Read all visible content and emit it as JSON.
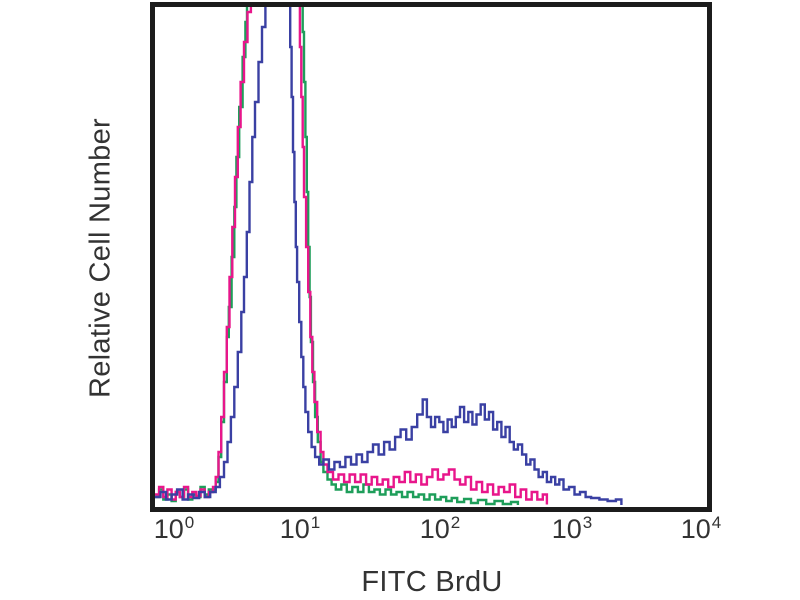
{
  "page": {
    "background": "#ffffff"
  },
  "colors": {
    "frame": "#1c1c1c",
    "text": "#333333",
    "green_trace": "#1e9e5a",
    "magenta_trace": "#e8168b",
    "blue_trace": "#3a40a3"
  },
  "chart_data": {
    "type": "line",
    "subtype": "flow_cytometry_histogram_overlay",
    "title": "",
    "xlabel": "FITC BrdU",
    "ylabel": "Relative Cell Number",
    "x_scale": "log10",
    "x_range": [
      1,
      10000
    ],
    "x_range_log10": [
      0,
      4
    ],
    "y_unit": "relative cell number (percent of plot height, main peak clipped at top)",
    "y_range_pct": [
      0,
      100
    ],
    "grid": false,
    "legend": null,
    "y_ticks": [],
    "x_ticks": [
      {
        "base": "10",
        "exp": "0"
      },
      {
        "base": "10",
        "exp": "1"
      },
      {
        "base": "10",
        "exp": "2"
      },
      {
        "base": "10",
        "exp": "3"
      },
      {
        "base": "10",
        "exp": "4"
      }
    ],
    "series": [
      {
        "name": "green-trace",
        "color": "#1e9e5a",
        "points": [
          [
            0.0,
            2
          ],
          [
            0.03,
            3.5
          ],
          [
            0.06,
            1.5
          ],
          [
            0.09,
            2.5
          ],
          [
            0.12,
            1.2
          ],
          [
            0.15,
            3
          ],
          [
            0.18,
            2
          ],
          [
            0.21,
            3.5
          ],
          [
            0.24,
            1.5
          ],
          [
            0.27,
            2.5
          ],
          [
            0.3,
            2
          ],
          [
            0.33,
            4
          ],
          [
            0.36,
            2.5
          ],
          [
            0.39,
            3.5
          ],
          [
            0.42,
            3.5
          ],
          [
            0.44,
            5
          ],
          [
            0.46,
            10
          ],
          [
            0.48,
            17
          ],
          [
            0.5,
            25
          ],
          [
            0.52,
            34
          ],
          [
            0.535,
            40
          ],
          [
            0.555,
            50
          ],
          [
            0.575,
            60
          ],
          [
            0.59,
            70
          ],
          [
            0.61,
            80
          ],
          [
            0.635,
            90
          ],
          [
            0.655,
            97
          ],
          [
            0.667,
            103
          ],
          [
            1.06,
            103
          ],
          [
            1.07,
            95
          ],
          [
            1.08,
            85
          ],
          [
            1.09,
            74
          ],
          [
            1.1,
            63
          ],
          [
            1.11,
            52
          ],
          [
            1.12,
            42
          ],
          [
            1.13,
            33
          ],
          [
            1.145,
            25
          ],
          [
            1.16,
            18
          ],
          [
            1.18,
            13
          ],
          [
            1.2,
            9
          ],
          [
            1.22,
            7
          ],
          [
            1.25,
            5.5
          ],
          [
            1.28,
            4.5
          ],
          [
            1.31,
            3.5
          ],
          [
            1.35,
            4.5
          ],
          [
            1.39,
            3
          ],
          [
            1.43,
            4
          ],
          [
            1.47,
            3
          ],
          [
            1.51,
            4.5
          ],
          [
            1.55,
            3
          ],
          [
            1.59,
            3.5
          ],
          [
            1.63,
            2.5
          ],
          [
            1.67,
            3.5
          ],
          [
            1.71,
            2.5
          ],
          [
            1.75,
            3
          ],
          [
            1.79,
            2
          ],
          [
            1.83,
            3
          ],
          [
            1.87,
            2
          ],
          [
            1.91,
            2.5
          ],
          [
            1.95,
            1.5
          ],
          [
            1.99,
            2.5
          ],
          [
            2.03,
            1.5
          ],
          [
            2.07,
            2
          ],
          [
            2.11,
            1.2
          ],
          [
            2.15,
            1.8
          ],
          [
            2.19,
            1
          ],
          [
            2.24,
            1.6
          ],
          [
            2.29,
            0.8
          ],
          [
            2.34,
            1.4
          ],
          [
            2.4,
            0.6
          ],
          [
            2.46,
            1.2
          ],
          [
            2.52,
            0.6
          ],
          [
            2.58,
            1
          ],
          [
            2.63,
            0.4
          ]
        ]
      },
      {
        "name": "magenta-trace",
        "color": "#e8168b",
        "points": [
          [
            0.0,
            2.5
          ],
          [
            0.03,
            4
          ],
          [
            0.06,
            2
          ],
          [
            0.09,
            3.5
          ],
          [
            0.12,
            1.5
          ],
          [
            0.15,
            3
          ],
          [
            0.18,
            2
          ],
          [
            0.21,
            4
          ],
          [
            0.24,
            2
          ],
          [
            0.27,
            3
          ],
          [
            0.3,
            2.2
          ],
          [
            0.33,
            3.5
          ],
          [
            0.36,
            2
          ],
          [
            0.39,
            3
          ],
          [
            0.42,
            4
          ],
          [
            0.44,
            6
          ],
          [
            0.46,
            11
          ],
          [
            0.48,
            18
          ],
          [
            0.5,
            27
          ],
          [
            0.52,
            36
          ],
          [
            0.54,
            46
          ],
          [
            0.56,
            56
          ],
          [
            0.58,
            66
          ],
          [
            0.6,
            76
          ],
          [
            0.62,
            85
          ],
          [
            0.645,
            93
          ],
          [
            0.67,
            99
          ],
          [
            0.695,
            103
          ],
          [
            1.035,
            103
          ],
          [
            1.05,
            92
          ],
          [
            1.06,
            82
          ],
          [
            1.07,
            72
          ],
          [
            1.08,
            62
          ],
          [
            1.095,
            52
          ],
          [
            1.11,
            43
          ],
          [
            1.125,
            34
          ],
          [
            1.14,
            27
          ],
          [
            1.155,
            21
          ],
          [
            1.175,
            15
          ],
          [
            1.2,
            11
          ],
          [
            1.22,
            8.5
          ],
          [
            1.25,
            7
          ],
          [
            1.29,
            5.5
          ],
          [
            1.33,
            6.5
          ],
          [
            1.37,
            5
          ],
          [
            1.41,
            6.5
          ],
          [
            1.45,
            5
          ],
          [
            1.49,
            6.5
          ],
          [
            1.53,
            4.5
          ],
          [
            1.57,
            6
          ],
          [
            1.61,
            4.5
          ],
          [
            1.65,
            5.5
          ],
          [
            1.69,
            4
          ],
          [
            1.73,
            6
          ],
          [
            1.77,
            5
          ],
          [
            1.81,
            7
          ],
          [
            1.85,
            5
          ],
          [
            1.89,
            6.5
          ],
          [
            1.93,
            4.5
          ],
          [
            1.97,
            6
          ],
          [
            2.01,
            7.5
          ],
          [
            2.05,
            5.5
          ],
          [
            2.09,
            6.5
          ],
          [
            2.13,
            7.5
          ],
          [
            2.17,
            5.5
          ],
          [
            2.21,
            4.5
          ],
          [
            2.25,
            6
          ],
          [
            2.29,
            3.5
          ],
          [
            2.33,
            5
          ],
          [
            2.37,
            3
          ],
          [
            2.41,
            4.5
          ],
          [
            2.45,
            2.5
          ],
          [
            2.49,
            4
          ],
          [
            2.53,
            3
          ],
          [
            2.57,
            4.5
          ],
          [
            2.61,
            2
          ],
          [
            2.65,
            3.5
          ],
          [
            2.69,
            1.5
          ],
          [
            2.73,
            3
          ],
          [
            2.77,
            1.5
          ],
          [
            2.81,
            2.5
          ],
          [
            2.84,
            0.5
          ]
        ]
      },
      {
        "name": "blue-trace",
        "color": "#3a40a3",
        "points": [
          [
            0.0,
            2
          ],
          [
            0.04,
            3
          ],
          [
            0.08,
            1.5
          ],
          [
            0.12,
            2.5
          ],
          [
            0.16,
            3.5
          ],
          [
            0.2,
            1.5
          ],
          [
            0.24,
            2.5
          ],
          [
            0.28,
            1.8
          ],
          [
            0.32,
            3
          ],
          [
            0.36,
            2
          ],
          [
            0.4,
            3
          ],
          [
            0.44,
            4
          ],
          [
            0.47,
            6
          ],
          [
            0.5,
            9
          ],
          [
            0.525,
            13
          ],
          [
            0.55,
            18
          ],
          [
            0.575,
            24
          ],
          [
            0.6,
            31
          ],
          [
            0.625,
            39
          ],
          [
            0.645,
            46
          ],
          [
            0.665,
            55
          ],
          [
            0.685,
            65
          ],
          [
            0.705,
            74
          ],
          [
            0.725,
            81
          ],
          [
            0.75,
            89
          ],
          [
            0.775,
            96
          ],
          [
            0.8,
            103
          ],
          [
            0.968,
            103
          ],
          [
            0.98,
            92
          ],
          [
            0.99,
            82
          ],
          [
            1.0,
            71
          ],
          [
            1.01,
            61
          ],
          [
            1.02,
            52
          ],
          [
            1.03,
            45
          ],
          [
            1.045,
            37
          ],
          [
            1.06,
            30
          ],
          [
            1.075,
            24
          ],
          [
            1.09,
            19
          ],
          [
            1.11,
            15
          ],
          [
            1.135,
            12
          ],
          [
            1.16,
            10
          ],
          [
            1.19,
            8.5
          ],
          [
            1.22,
            9.5
          ],
          [
            1.26,
            7.5
          ],
          [
            1.3,
            9
          ],
          [
            1.34,
            8
          ],
          [
            1.38,
            10
          ],
          [
            1.42,
            8.5
          ],
          [
            1.46,
            10.5
          ],
          [
            1.5,
            9
          ],
          [
            1.54,
            11
          ],
          [
            1.58,
            12.5
          ],
          [
            1.62,
            10.5
          ],
          [
            1.66,
            13
          ],
          [
            1.7,
            11.5
          ],
          [
            1.74,
            14
          ],
          [
            1.78,
            15.5
          ],
          [
            1.82,
            13.5
          ],
          [
            1.86,
            16
          ],
          [
            1.9,
            18.5
          ],
          [
            1.94,
            21.5
          ],
          [
            1.97,
            18
          ],
          [
            2.0,
            16
          ],
          [
            2.03,
            18
          ],
          [
            2.06,
            17
          ],
          [
            2.09,
            15
          ],
          [
            2.12,
            17.5
          ],
          [
            2.15,
            16
          ],
          [
            2.18,
            18
          ],
          [
            2.21,
            20
          ],
          [
            2.24,
            17
          ],
          [
            2.27,
            19
          ],
          [
            2.3,
            16.5
          ],
          [
            2.33,
            18.5
          ],
          [
            2.36,
            20.5
          ],
          [
            2.39,
            17.5
          ],
          [
            2.42,
            19
          ],
          [
            2.45,
            15.5
          ],
          [
            2.48,
            17
          ],
          [
            2.51,
            14
          ],
          [
            2.54,
            16
          ],
          [
            2.57,
            13
          ],
          [
            2.6,
            11.5
          ],
          [
            2.63,
            12.5
          ],
          [
            2.66,
            10.5
          ],
          [
            2.69,
            8.5
          ],
          [
            2.72,
            9.5
          ],
          [
            2.75,
            7.5
          ],
          [
            2.78,
            6
          ],
          [
            2.81,
            7
          ],
          [
            2.84,
            5
          ],
          [
            2.87,
            6
          ],
          [
            2.9,
            4.5
          ],
          [
            2.93,
            5.5
          ],
          [
            2.96,
            3.5
          ],
          [
            3.0,
            4
          ],
          [
            3.04,
            2.5
          ],
          [
            3.08,
            3
          ],
          [
            3.12,
            2
          ],
          [
            3.16,
            1.8
          ],
          [
            3.22,
            1.5
          ],
          [
            3.28,
            1.2
          ],
          [
            3.34,
            1.5
          ],
          [
            3.38,
            0.4
          ]
        ]
      }
    ]
  }
}
